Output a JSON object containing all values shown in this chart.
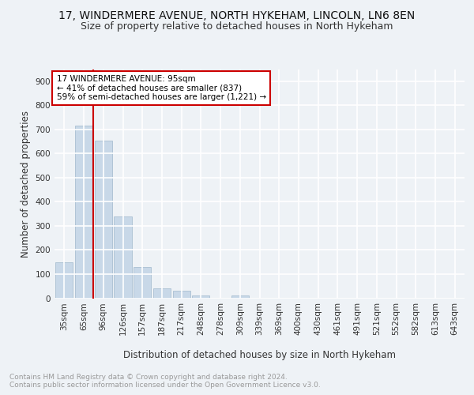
{
  "title1": "17, WINDERMERE AVENUE, NORTH HYKEHAM, LINCOLN, LN6 8EN",
  "title2": "Size of property relative to detached houses in North Hykeham",
  "xlabel": "Distribution of detached houses by size in North Hykeham",
  "ylabel": "Number of detached properties",
  "categories": [
    "35sqm",
    "65sqm",
    "96sqm",
    "126sqm",
    "157sqm",
    "187sqm",
    "217sqm",
    "248sqm",
    "278sqm",
    "309sqm",
    "339sqm",
    "369sqm",
    "400sqm",
    "430sqm",
    "461sqm",
    "491sqm",
    "521sqm",
    "552sqm",
    "582sqm",
    "613sqm",
    "643sqm"
  ],
  "values": [
    150,
    715,
    655,
    340,
    130,
    42,
    30,
    13,
    0,
    10,
    0,
    0,
    0,
    0,
    0,
    0,
    0,
    0,
    0,
    0,
    0
  ],
  "bar_color": "#c8d8e8",
  "bar_edge_color": "#a0b8cc",
  "vline_color": "#cc0000",
  "annotation_text": "17 WINDERMERE AVENUE: 95sqm\n← 41% of detached houses are smaller (837)\n59% of semi-detached houses are larger (1,221) →",
  "annotation_box_color": "#ffffff",
  "annotation_box_edge": "#cc0000",
  "ylim": [
    0,
    950
  ],
  "yticks": [
    0,
    100,
    200,
    300,
    400,
    500,
    600,
    700,
    800,
    900
  ],
  "footer_text": "Contains HM Land Registry data © Crown copyright and database right 2024.\nContains public sector information licensed under the Open Government Licence v3.0.",
  "bg_color": "#eef2f6",
  "plot_bg_color": "#eef2f6",
  "grid_color": "#ffffff",
  "title1_fontsize": 10,
  "title2_fontsize": 9,
  "axis_label_fontsize": 8.5,
  "tick_fontsize": 7.5,
  "footer_fontsize": 6.5,
  "annotation_fontsize": 7.5
}
